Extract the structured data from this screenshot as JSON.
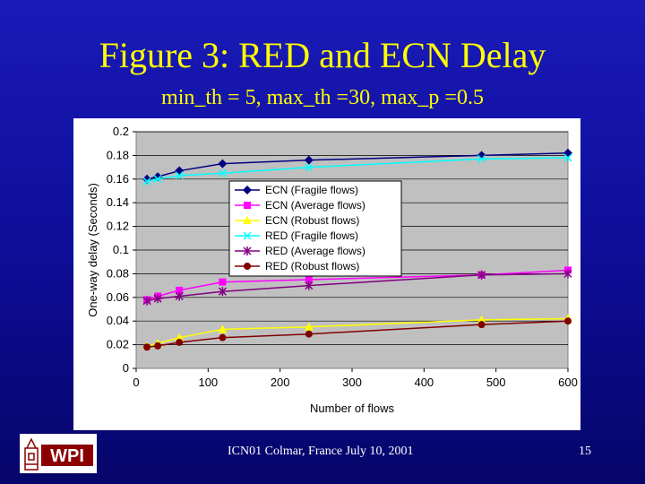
{
  "slide": {
    "title": "Figure 3: RED and ECN Delay",
    "subtitle": "min_th = 5, max_th =30, max_p =0.5",
    "footer_center": "ICN01 Colmar, France July 10, 2001",
    "page_number": "15",
    "logo_text": "WPI"
  },
  "colors": {
    "title": "#ffff00",
    "plot_bg": "#c0c0c0"
  },
  "chart_data": {
    "type": "line",
    "title": "",
    "xlabel": "Number of flows",
    "ylabel": "One-way delay (Seconds)",
    "xlim": [
      0,
      600
    ],
    "ylim": [
      0,
      0.2
    ],
    "xticks": [
      0,
      100,
      200,
      300,
      400,
      500,
      600
    ],
    "yticks": [
      0,
      0.02,
      0.04,
      0.06,
      0.08,
      0.1,
      0.12,
      0.14,
      0.16,
      0.18,
      0.2
    ],
    "ytick_labels": [
      "0",
      "0.02",
      "0.04",
      "0.06",
      "0.08",
      "0.1",
      "0.12",
      "0.14",
      "0.16",
      "0.18",
      "0.2"
    ],
    "grid": "horizontal",
    "legend_position": "center-left",
    "x": [
      15,
      30,
      60,
      120,
      240,
      480,
      600
    ],
    "series": [
      {
        "name": "ECN (Fragile flows)",
        "color": "#000080",
        "marker": "diamond",
        "values": [
          0.16,
          0.162,
          0.167,
          0.173,
          0.176,
          0.18,
          0.182
        ]
      },
      {
        "name": "ECN (Average flows)",
        "color": "#ff00ff",
        "marker": "square",
        "values": [
          0.058,
          0.061,
          0.066,
          0.073,
          0.075,
          0.079,
          0.083
        ]
      },
      {
        "name": "ECN (Robust flows)",
        "color": "#ffff00",
        "marker": "triangle",
        "values": [
          0.019,
          0.021,
          0.026,
          0.033,
          0.035,
          0.041,
          0.042
        ]
      },
      {
        "name": "RED (Fragile flows)",
        "color": "#00ffff",
        "marker": "x",
        "values": [
          0.158,
          0.16,
          0.163,
          0.165,
          0.17,
          0.177,
          0.178
        ]
      },
      {
        "name": "RED (Average flows)",
        "color": "#800080",
        "marker": "star",
        "values": [
          0.057,
          0.059,
          0.061,
          0.065,
          0.07,
          0.079,
          0.08
        ]
      },
      {
        "name": "RED (Robust flows)",
        "color": "#800000",
        "marker": "circle",
        "values": [
          0.018,
          0.019,
          0.022,
          0.026,
          0.029,
          0.037,
          0.04
        ]
      }
    ]
  }
}
